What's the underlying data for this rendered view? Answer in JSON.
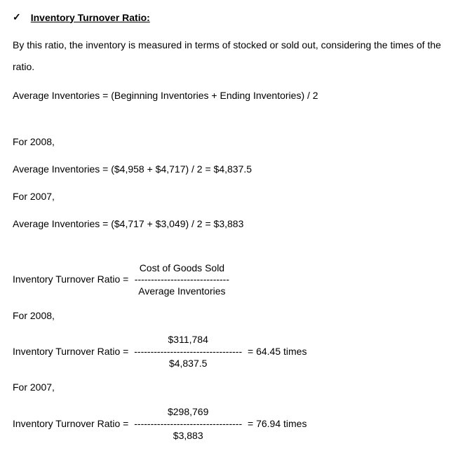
{
  "heading": {
    "checkmark": "✓",
    "title": "Inventory Turnover Ratio:"
  },
  "intro": "By this ratio, the inventory is measured in terms of stocked or sold out, considering the times of the ratio.",
  "avg_formula": "Average Inventories = (Beginning Inventories + Ending Inventories) / 2",
  "calc2008_label": "For 2008,",
  "calc2008_line": "Average Inventories = ($4,958 + $4,717) / 2 = $4,837.5",
  "calc2007_label": "For 2007,",
  "calc2007_line": "Average Inventories = ($4,717 + $3,049) / 2 = $3,883",
  "ratio_formula": {
    "label": "Inventory Turnover Ratio = ",
    "numerator": "Cost of Goods Sold",
    "divider": "-----------------------------",
    "denominator": "Average Inventories",
    "result": ""
  },
  "ratio2008_label": "For 2008,",
  "ratio2008": {
    "label": "Inventory Turnover Ratio = ",
    "numerator": "$311,784",
    "divider": "---------------------------------",
    "denominator": "$4,837.5",
    "result": " = 64.45 times"
  },
  "ratio2007_label": "For 2007,",
  "ratio2007": {
    "label": "Inventory Turnover Ratio = ",
    "numerator": "$298,769",
    "divider": "---------------------------------",
    "denominator": "$3,883",
    "result": " = 76.94 times"
  }
}
